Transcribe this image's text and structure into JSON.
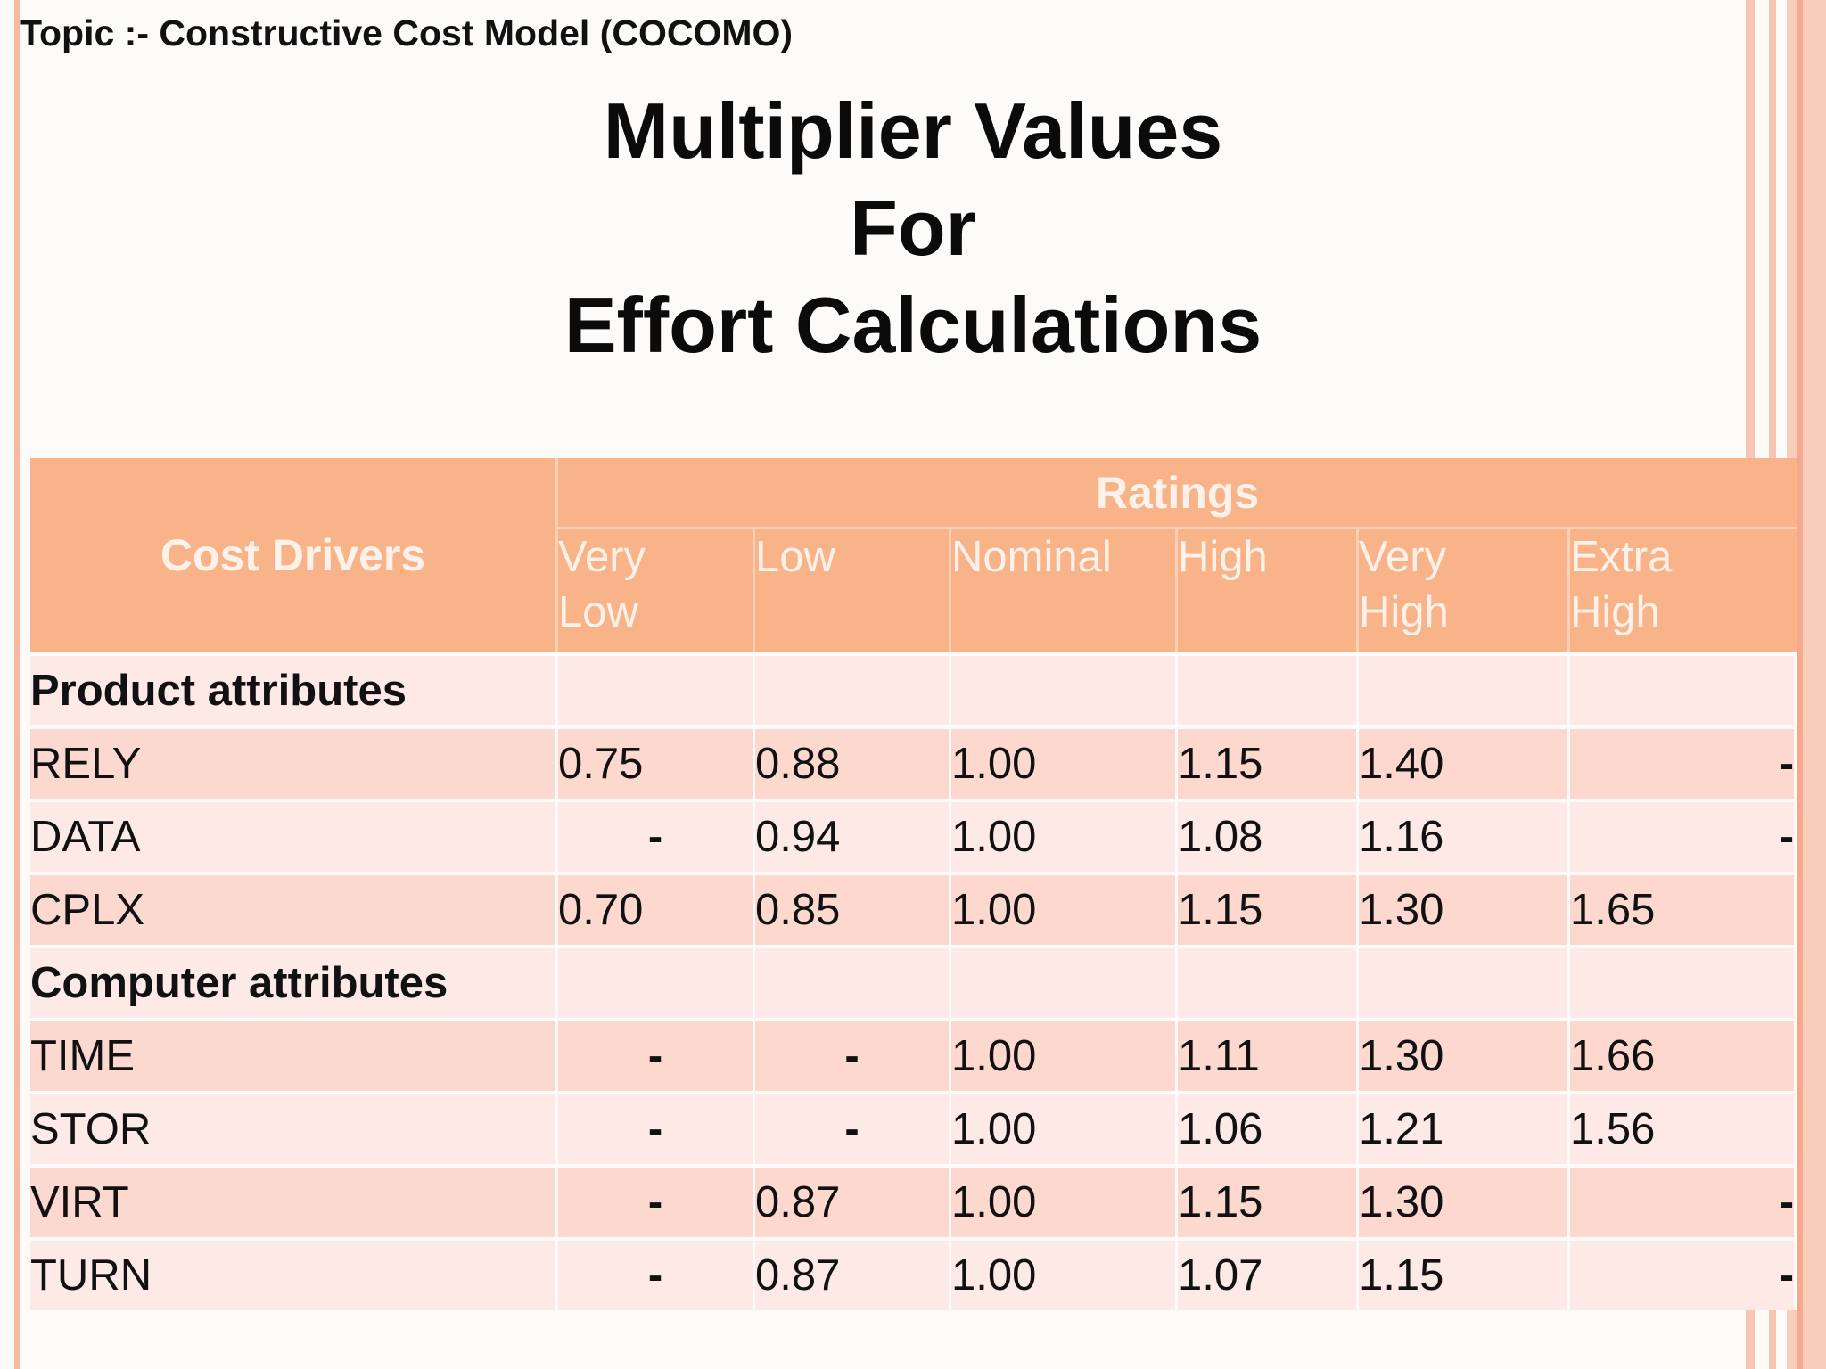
{
  "topic": "Topic :- Constructive Cost Model (COCOMO)",
  "title": {
    "line1": "Multiplier Values",
    "line2": "For",
    "line3": "Effort Calculations"
  },
  "table": {
    "cost_drivers_header": "Cost Drivers",
    "ratings_header": "Ratings",
    "columns": [
      {
        "line1": "Very",
        "line2": "Low"
      },
      {
        "line1": "Low",
        "line2": ""
      },
      {
        "line1": "Nominal",
        "line2": ""
      },
      {
        "line1": "High",
        "line2": ""
      },
      {
        "line1": "Very",
        "line2": "High"
      },
      {
        "line1": "Extra",
        "line2": "High"
      }
    ],
    "sections": [
      {
        "name": "Product attributes",
        "rows": [
          {
            "driver": "RELY",
            "values": [
              "0.75",
              "0.88",
              "1.00",
              "1.15",
              "1.40",
              "-"
            ]
          },
          {
            "driver": "DATA",
            "values": [
              "-",
              "0.94",
              "1.00",
              "1.08",
              "1.16",
              "-"
            ]
          },
          {
            "driver": "CPLX",
            "values": [
              "0.70",
              "0.85",
              "1.00",
              "1.15",
              "1.30",
              "1.65"
            ]
          }
        ]
      },
      {
        "name": "Computer attributes",
        "rows": [
          {
            "driver": "TIME",
            "values": [
              "-",
              "-",
              "1.00",
              "1.11",
              "1.30",
              "1.66"
            ]
          },
          {
            "driver": "STOR",
            "values": [
              "-",
              "-",
              "1.00",
              "1.06",
              "1.21",
              "1.56"
            ]
          },
          {
            "driver": "VIRT",
            "values": [
              "-",
              "0.87",
              "1.00",
              "1.15",
              "1.30",
              "-"
            ]
          },
          {
            "driver": "TURN",
            "values": [
              "-",
              "0.87",
              "1.00",
              "1.07",
              "1.15",
              "-"
            ]
          }
        ]
      }
    ]
  },
  "colors": {
    "header_bg": "#f9b388",
    "row_dark": "#fcd8cf",
    "row_light": "#fde9e6",
    "border_accent": "#f7b9a1"
  }
}
